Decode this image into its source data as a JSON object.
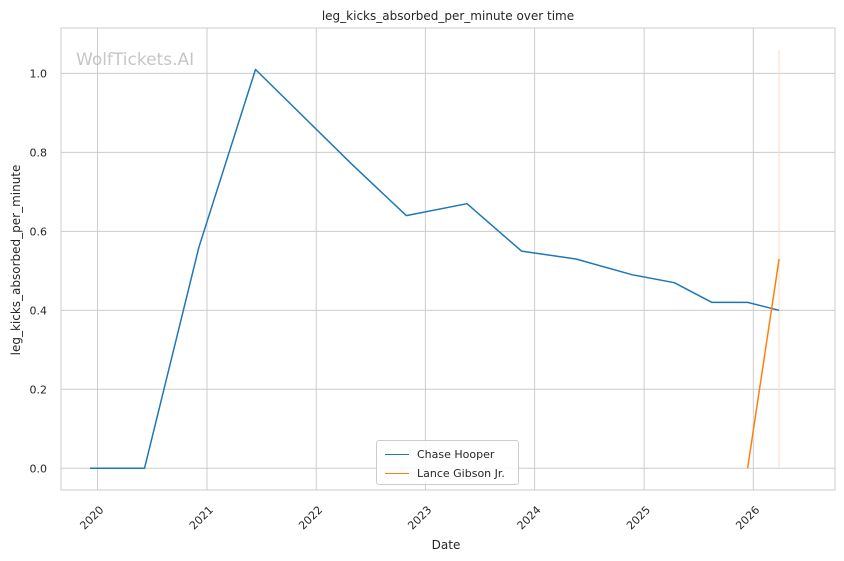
{
  "chart_data": {
    "type": "line",
    "title": "leg_kicks_absorbed_per_minute over time",
    "xlabel": "Date",
    "ylabel": "leg_kicks_absorbed_per_minute",
    "watermark": "WolfTickets.AI",
    "x_ticks": [
      "2020",
      "2021",
      "2022",
      "2023",
      "2024",
      "2025",
      "2026"
    ],
    "y_ticks": [
      "0.0",
      "0.2",
      "0.4",
      "0.6",
      "0.8",
      "1.0"
    ],
    "xlim": [
      "2019-09-01",
      "2026-10-01"
    ],
    "ylim": [
      -0.055,
      1.115
    ],
    "grid": true,
    "legend_position": "lower-center",
    "series": [
      {
        "name": "Chase Hooper",
        "color": "#1f77b4",
        "points": [
          {
            "x": "2019-12-07",
            "y": 0.0
          },
          {
            "x": "2020-06-06",
            "y": 0.0
          },
          {
            "x": "2020-12-05",
            "y": 0.56
          },
          {
            "x": "2021-06-12",
            "y": 1.01
          },
          {
            "x": "2022-04-30",
            "y": 0.77
          },
          {
            "x": "2022-10-29",
            "y": 0.64
          },
          {
            "x": "2023-05-20",
            "y": 0.67
          },
          {
            "x": "2023-11-18",
            "y": 0.55
          },
          {
            "x": "2024-05-18",
            "y": 0.53
          },
          {
            "x": "2024-11-23",
            "y": 0.49
          },
          {
            "x": "2025-04-12",
            "y": 0.47
          },
          {
            "x": "2025-08-16",
            "y": 0.42
          },
          {
            "x": "2025-12-13",
            "y": 0.42
          },
          {
            "x": "2026-03-28",
            "y": 0.4
          }
        ]
      },
      {
        "name": "Lance Gibson Jr.",
        "color": "#ff7f0e",
        "points": [
          {
            "x": "2025-12-13",
            "y": 0.0
          },
          {
            "x": "2026-03-28",
            "y": 0.53
          }
        ]
      }
    ],
    "marker_line": {
      "x": "2026-03-28",
      "y_range": [
        0.0,
        1.06
      ],
      "color": "#f5dcc8"
    }
  }
}
